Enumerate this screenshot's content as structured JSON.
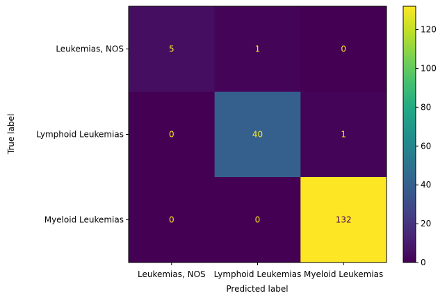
{
  "chart_data": {
    "type": "heatmap",
    "title": "",
    "xlabel": "Predicted label",
    "ylabel": "True label",
    "x_categories": [
      "Leukemias, NOS",
      "Lymphoid Leukemias",
      "Myeloid Leukemias"
    ],
    "y_categories": [
      "Leukemias, NOS",
      "Lymphoid Leukemias",
      "Myeloid Leukemias"
    ],
    "matrix": [
      [
        5,
        1,
        0
      ],
      [
        0,
        40,
        1
      ],
      [
        0,
        0,
        132
      ]
    ],
    "colormap": "viridis",
    "colorbar": {
      "min": 0,
      "max": 132,
      "ticks": [
        0,
        20,
        40,
        60,
        80,
        100,
        120
      ]
    },
    "text_color_dark_cells": "#fde725",
    "text_color_light_cells": "#440154"
  }
}
